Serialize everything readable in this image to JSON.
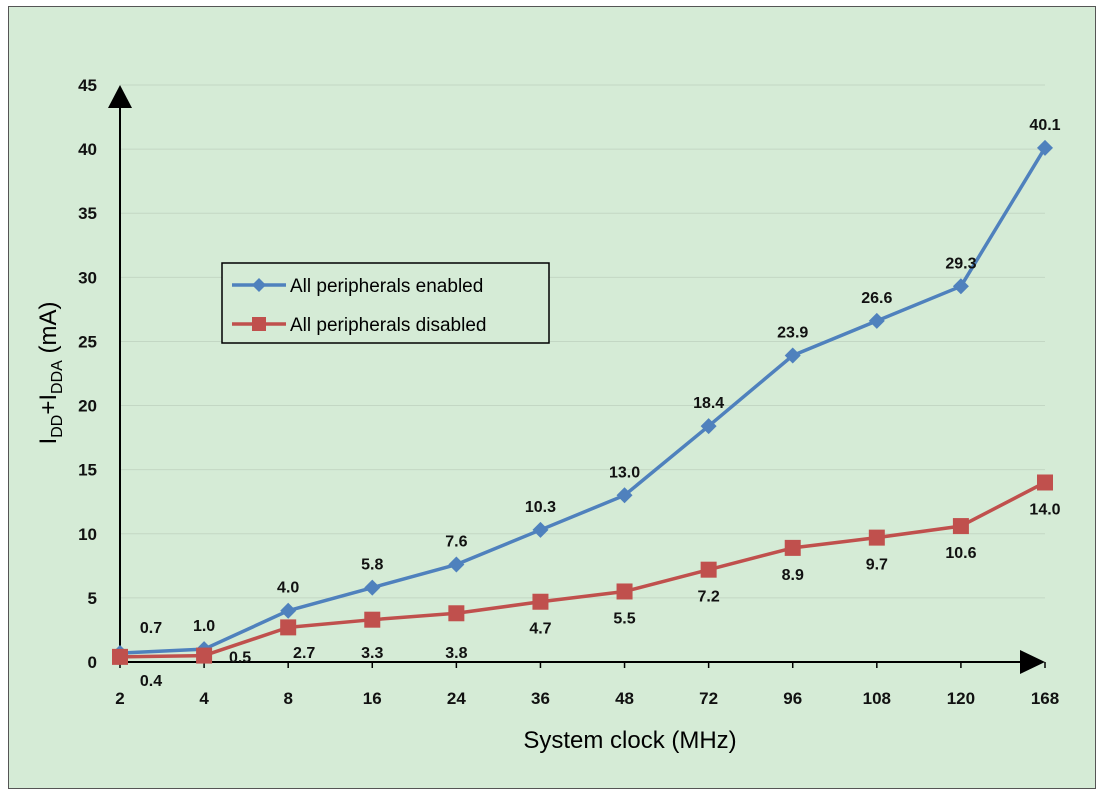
{
  "chart_data": {
    "type": "line",
    "categories": [
      "2",
      "4",
      "8",
      "16",
      "24",
      "36",
      "48",
      "72",
      "96",
      "108",
      "120",
      "168"
    ],
    "xlabel": "System clock (MHz)",
    "ylabel": {
      "main": "I",
      "sub1": "DD",
      "plus": "+I",
      "sub2": "DDA",
      "unit": " (mA)"
    },
    "ylim": [
      0,
      45
    ],
    "yticks": [
      0,
      5,
      10,
      15,
      20,
      25,
      30,
      35,
      40,
      45
    ],
    "grid": true,
    "legend_position": "center-left",
    "series": [
      {
        "name": "All peripherals enabled",
        "color": "#4f81bd",
        "marker": "diamond",
        "values": [
          0.7,
          1.0,
          4.0,
          5.8,
          7.6,
          10.3,
          13.0,
          18.4,
          23.9,
          26.6,
          29.3,
          40.1
        ],
        "labels": [
          "0.7",
          "1.0",
          "4.0",
          "5.8",
          "7.6",
          "10.3",
          "13.0",
          "18.4",
          "23.9",
          "26.6",
          "29.3",
          "40.1"
        ]
      },
      {
        "name": "All peripherals disabled",
        "color": "#c0504d",
        "marker": "square",
        "values": [
          0.4,
          0.5,
          2.7,
          3.3,
          3.8,
          4.7,
          5.5,
          7.2,
          8.9,
          9.7,
          10.6,
          14.0
        ],
        "labels": [
          "0.4",
          "0.5",
          "2.7",
          "3.3",
          "3.8",
          "4.7",
          "5.5",
          "7.2",
          "8.9",
          "9.7",
          "10.6",
          "14.0"
        ]
      }
    ]
  }
}
